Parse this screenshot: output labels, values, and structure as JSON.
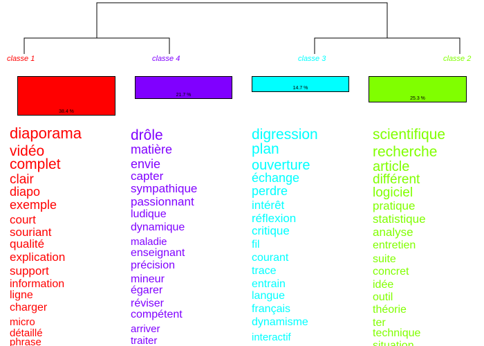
{
  "classes": [
    {
      "id": "c1",
      "label": "classe  1",
      "percent": "38.4 %",
      "color": "#ff0000",
      "words": [
        "diaporama",
        "vidéo",
        "complet",
        "clair",
        "diapo",
        "exemple",
        "court",
        "souriant",
        "qualité",
        "explication",
        "support",
        "information",
        "ligne",
        "charger",
        "micro",
        "détaillé",
        "phrase"
      ]
    },
    {
      "id": "c4",
      "label": "classe  4",
      "percent": "21.7 %",
      "color": "#8000ff",
      "words": [
        "drôle",
        "matière",
        "envie",
        "capter",
        "sympathique",
        "passionnant",
        "ludique",
        "dynamique",
        "maladie",
        "enseignant",
        "précision",
        "mineur",
        "égarer",
        "réviser",
        "compétent",
        "arriver",
        "traiter"
      ]
    },
    {
      "id": "c3",
      "label": "classe  3",
      "percent": "14.7 %",
      "color": "#00ffff",
      "words": [
        "digression",
        "plan",
        "ouverture",
        "échange",
        "perdre",
        "intérêt",
        "réflexion",
        "critique",
        "fil",
        "courant",
        "trace",
        "entrain",
        "langue",
        "français",
        "dynamisme",
        "interactif"
      ]
    },
    {
      "id": "c2",
      "label": "classe  2",
      "percent": "25.3 %",
      "color": "#80ff00",
      "words": [
        "scientifique",
        "recherche",
        "article",
        "différent",
        "logiciel",
        "pratique",
        "statistique",
        "analyse",
        "entretien",
        "suite",
        "concret",
        "idée",
        "outil",
        "théorie",
        "ter",
        "technique",
        "situation"
      ]
    }
  ]
}
